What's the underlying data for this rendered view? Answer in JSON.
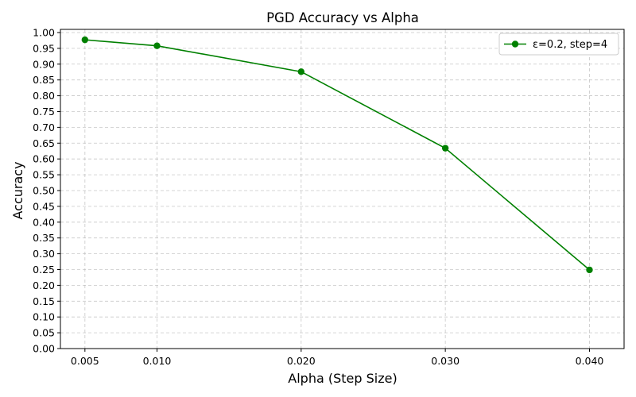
{
  "chart_data": {
    "type": "line",
    "title": "PGD Accuracy vs Alpha",
    "xlabel": "Alpha (Step Size)",
    "ylabel": "Accuracy",
    "x_ticks": [
      "0.005",
      "0.010",
      "0.020",
      "0.030",
      "0.040"
    ],
    "y_ticks": [
      "0.00",
      "0.05",
      "0.10",
      "0.15",
      "0.20",
      "0.25",
      "0.30",
      "0.35",
      "0.40",
      "0.45",
      "0.50",
      "0.55",
      "0.60",
      "0.65",
      "0.70",
      "0.75",
      "0.80",
      "0.85",
      "0.90",
      "0.95",
      "1.00"
    ],
    "xlim": [
      0.0033,
      0.0424
    ],
    "ylim": [
      0,
      1.01
    ],
    "grid": true,
    "legend_position": "top-right",
    "series": [
      {
        "name": "ε=0.2, step=4",
        "color": "#008000",
        "marker": "circle",
        "x": [
          0.005,
          0.01,
          0.02,
          0.03,
          0.04
        ],
        "y": [
          0.977,
          0.958,
          0.876,
          0.634,
          0.249
        ]
      }
    ]
  }
}
